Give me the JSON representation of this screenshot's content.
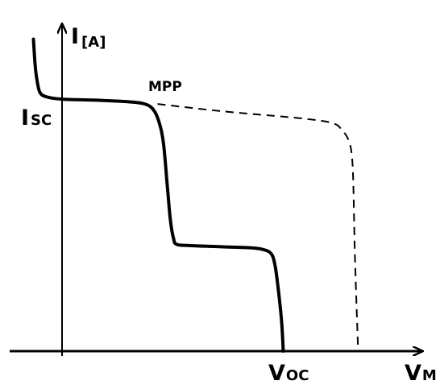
{
  "chart_data": {
    "type": "line",
    "title": "",
    "xlabel": {
      "main": "V",
      "sub": "M"
    },
    "ylabel": {
      "main": "I",
      "sub": "[A]"
    },
    "annotations": {
      "isc": {
        "main": "I",
        "sub": "SC"
      },
      "voc": {
        "main": "V",
        "sub": "OC"
      },
      "mpp": "MPP"
    },
    "grid": false,
    "legend": "none",
    "colors": {
      "curve": "#000000",
      "axis": "#000000"
    },
    "series": [
      {
        "style": "solid",
        "points": [
          [
            -0.09,
            1.3
          ],
          [
            -0.085,
            1.2
          ],
          [
            -0.08,
            1.14
          ],
          [
            -0.07,
            1.08
          ],
          [
            -0.05,
            1.06
          ],
          [
            0,
            1.05
          ],
          [
            0.1,
            1.046
          ],
          [
            0.2,
            1.04
          ],
          [
            0.26,
            1.03
          ],
          [
            0.29,
            1.0
          ],
          [
            0.31,
            0.93
          ],
          [
            0.32,
            0.85
          ],
          [
            0.33,
            0.7
          ],
          [
            0.34,
            0.55
          ],
          [
            0.35,
            0.47
          ],
          [
            0.36,
            0.445
          ],
          [
            0.4,
            0.44
          ],
          [
            0.5,
            0.435
          ],
          [
            0.6,
            0.43
          ],
          [
            0.64,
            0.42
          ],
          [
            0.66,
            0.4
          ],
          [
            0.67,
            0.35
          ],
          [
            0.68,
            0.25
          ],
          [
            0.69,
            0.12
          ],
          [
            0.695,
            0
          ]
        ]
      },
      {
        "style": "dashed",
        "points": [
          [
            0.3,
            1.03
          ],
          [
            0.5,
            1.0
          ],
          [
            0.75,
            0.97
          ],
          [
            0.85,
            0.95
          ],
          [
            0.88,
            0.92
          ],
          [
            0.9,
            0.88
          ],
          [
            0.91,
            0.82
          ],
          [
            0.915,
            0.7
          ],
          [
            0.92,
            0.4
          ],
          [
            0.93,
            0
          ]
        ]
      }
    ]
  }
}
